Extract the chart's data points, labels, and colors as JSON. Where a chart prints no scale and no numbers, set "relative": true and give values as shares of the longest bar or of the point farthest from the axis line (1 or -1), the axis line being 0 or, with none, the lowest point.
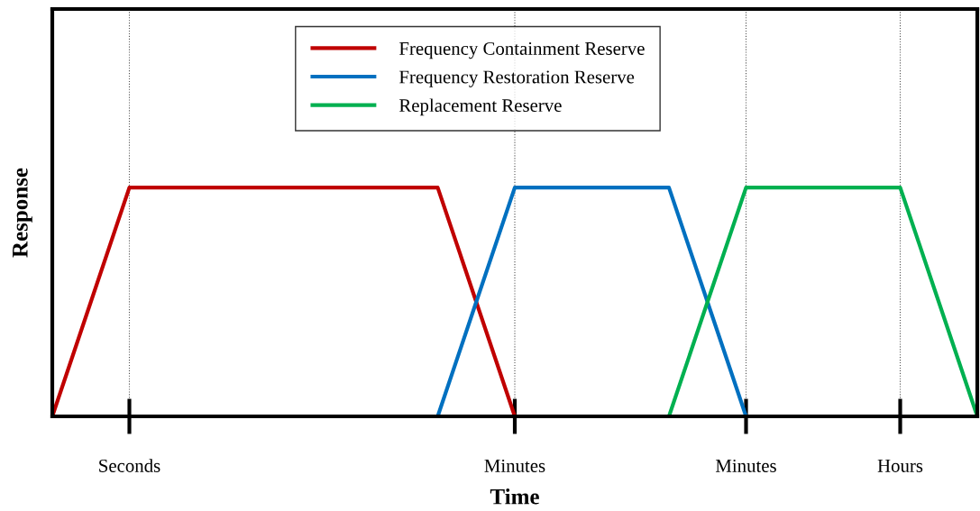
{
  "chart_data": {
    "type": "line",
    "relative": true,
    "xlabel": "Time",
    "ylabel": "Response",
    "categories": [
      null,
      null,
      "Seconds",
      null,
      null,
      null,
      null,
      null,
      null,
      null,
      null,
      null,
      "Minutes",
      null,
      null,
      null,
      null,
      null,
      "Minutes",
      null,
      null,
      null,
      "Hours",
      null,
      null
    ],
    "grid": "x",
    "legend": "top",
    "marker": "none",
    "line_style": "solid",
    "tick_labels": "x",
    "series": [
      {
        "name": "Frequency Containment Reserve",
        "color": "#c00000",
        "values": [
          0,
          0.5,
          1,
          1,
          1,
          1,
          1,
          1,
          1,
          1,
          1,
          0.5,
          0,
          null,
          null,
          null,
          null,
          null,
          null,
          null,
          null,
          null,
          null,
          null,
          null
        ]
      },
      {
        "name": "Frequency Restoration Reserve",
        "color": "#0070c0",
        "values": [
          null,
          null,
          null,
          null,
          null,
          null,
          null,
          null,
          null,
          null,
          0,
          0.5,
          1,
          1,
          1,
          1,
          1,
          0.5,
          0,
          null,
          null,
          null,
          null,
          null,
          null
        ]
      },
      {
        "name": "Replacement Reserve",
        "color": "#00b050",
        "values": [
          null,
          null,
          null,
          null,
          null,
          null,
          null,
          null,
          null,
          null,
          null,
          null,
          null,
          null,
          null,
          null,
          0,
          0.5,
          1,
          1,
          1,
          1,
          1,
          0.5,
          0
        ]
      }
    ]
  }
}
